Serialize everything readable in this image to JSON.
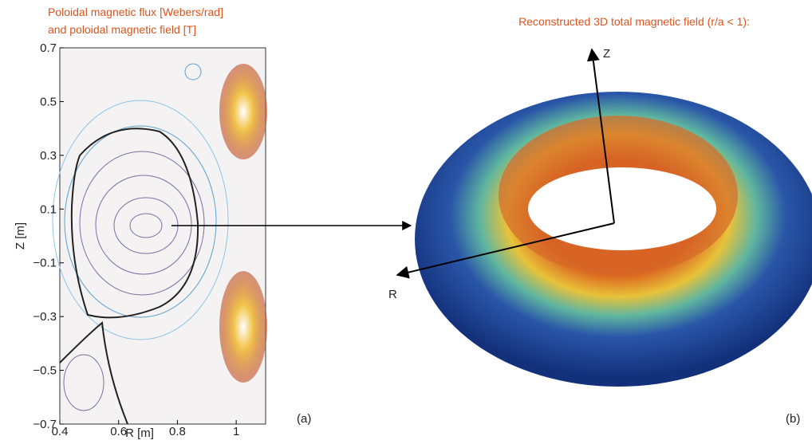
{
  "left_panel": {
    "title_lines": [
      "Poloidal magnetic flux [Webers/rad]",
      "and poloidal magnetic field [T]"
    ],
    "xlabel": "R [m]",
    "ylabel": "Z [m]",
    "xlim": [
      0.4,
      1.1
    ],
    "ylim": [
      -0.7,
      0.7
    ],
    "xticks": [
      0.4,
      0.6,
      0.8,
      1
    ],
    "yticks": [
      0.7,
      0.5,
      0.3,
      0.1,
      {
        "value": -0.1,
        "label": "−0.1"
      },
      {
        "value": -0.3,
        "label": "−0.3"
      },
      {
        "value": -0.5,
        "label": "−0.5"
      },
      {
        "value": -0.7,
        "label": "−0.7"
      }
    ],
    "panel_label": "(a)"
  },
  "right_panel": {
    "title": "Reconstructed 3D total magnetic field (r/a < 1):",
    "axis_labels": [
      "Z",
      "R"
    ],
    "panel_label": "(b)"
  }
}
